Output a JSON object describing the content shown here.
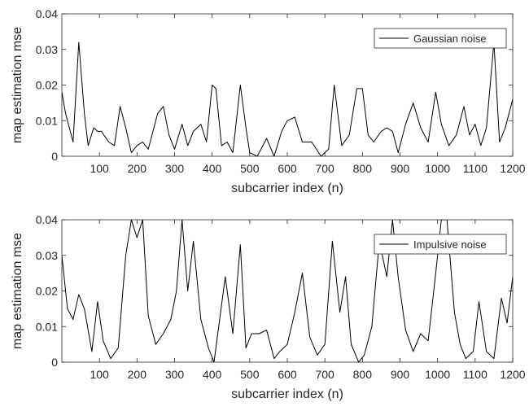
{
  "chart_data": [
    {
      "type": "line",
      "xlabel": "subcarrier index (n)",
      "ylabel": "map estimation mse",
      "xlim": [
        0,
        1200
      ],
      "ylim": [
        0,
        0.04
      ],
      "xticks": [
        100,
        200,
        300,
        400,
        500,
        600,
        700,
        800,
        900,
        1000,
        1100,
        1200
      ],
      "yticks": [
        0,
        0.01,
        0.02,
        0.03,
        0.04
      ],
      "grid": false,
      "legend_position": "top-right",
      "series": [
        {
          "name": "Gaussian noise",
          "color": "#000000",
          "x": [
            0,
            10,
            20,
            30,
            45,
            60,
            70,
            85,
            95,
            105,
            125,
            140,
            155,
            170,
            185,
            200,
            215,
            230,
            255,
            270,
            285,
            300,
            320,
            335,
            350,
            370,
            385,
            400,
            410,
            425,
            440,
            455,
            475,
            490,
            500,
            520,
            545,
            565,
            585,
            600,
            620,
            640,
            665,
            690,
            710,
            725,
            745,
            765,
            785,
            800,
            815,
            830,
            850,
            865,
            880,
            895,
            915,
            935,
            955,
            975,
            995,
            1010,
            1030,
            1050,
            1070,
            1085,
            1100,
            1115,
            1130,
            1150,
            1165,
            1180,
            1190,
            1200
          ],
          "values": [
            0.018,
            0.012,
            0.008,
            0.004,
            0.032,
            0.012,
            0.003,
            0.008,
            0.007,
            0.007,
            0.004,
            0.003,
            0.014,
            0.008,
            0.001,
            0.003,
            0.004,
            0.002,
            0.012,
            0.014,
            0.006,
            0.002,
            0.009,
            0.003,
            0.007,
            0.009,
            0.004,
            0.02,
            0.019,
            0.003,
            0.004,
            0.001,
            0.02,
            0.008,
            0.001,
            0.0,
            0.005,
            0.0,
            0.007,
            0.01,
            0.011,
            0.004,
            0.004,
            0.0,
            0.002,
            0.02,
            0.003,
            0.006,
            0.019,
            0.019,
            0.006,
            0.004,
            0.007,
            0.008,
            0.007,
            0.001,
            0.009,
            0.015,
            0.008,
            0.004,
            0.018,
            0.009,
            0.003,
            0.006,
            0.014,
            0.006,
            0.009,
            0.003,
            0.008,
            0.032,
            0.004,
            0.008,
            0.012,
            0.016
          ]
        }
      ]
    },
    {
      "type": "line",
      "xlabel": "subcarrier index (n)",
      "ylabel": "map estimation mse",
      "xlim": [
        0,
        1200
      ],
      "ylim": [
        0,
        0.04
      ],
      "xticks": [
        100,
        200,
        300,
        400,
        500,
        600,
        700,
        800,
        900,
        1000,
        1100,
        1200
      ],
      "yticks": [
        0,
        0.01,
        0.02,
        0.03,
        0.04
      ],
      "grid": false,
      "legend_position": "top-right",
      "series": [
        {
          "name": "Impulsive noise",
          "color": "#000000",
          "x": [
            0,
            15,
            30,
            45,
            60,
            80,
            95,
            110,
            130,
            150,
            170,
            185,
            200,
            215,
            230,
            250,
            270,
            290,
            305,
            320,
            335,
            350,
            370,
            390,
            405,
            420,
            435,
            455,
            475,
            490,
            505,
            525,
            545,
            565,
            580,
            600,
            620,
            640,
            660,
            680,
            700,
            720,
            740,
            755,
            770,
            790,
            805,
            825,
            845,
            865,
            880,
            895,
            915,
            935,
            955,
            975,
            995,
            1010,
            1025,
            1045,
            1060,
            1075,
            1095,
            1110,
            1130,
            1150,
            1170,
            1185,
            1200
          ],
          "values": [
            0.03,
            0.015,
            0.012,
            0.019,
            0.015,
            0.003,
            0.017,
            0.006,
            0.001,
            0.004,
            0.03,
            0.045,
            0.035,
            0.04,
            0.013,
            0.005,
            0.008,
            0.012,
            0.02,
            0.042,
            0.02,
            0.034,
            0.012,
            0.004,
            0.0,
            0.012,
            0.024,
            0.008,
            0.033,
            0.004,
            0.008,
            0.008,
            0.009,
            0.001,
            0.003,
            0.005,
            0.014,
            0.025,
            0.007,
            0.002,
            0.005,
            0.034,
            0.014,
            0.024,
            0.005,
            0.0,
            0.002,
            0.01,
            0.034,
            0.024,
            0.04,
            0.024,
            0.009,
            0.003,
            0.008,
            0.006,
            0.025,
            0.042,
            0.04,
            0.014,
            0.005,
            0.001,
            0.003,
            0.017,
            0.003,
            0.001,
            0.018,
            0.011,
            0.024
          ]
        }
      ]
    }
  ]
}
